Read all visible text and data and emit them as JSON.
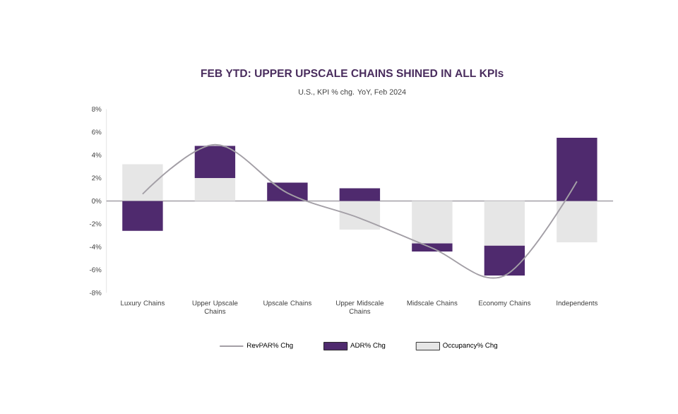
{
  "chart_data": {
    "type": "bar",
    "stacked": true,
    "title": "FEB YTD: UPPER UPSCALE CHAINS SHINED IN ALL KPIs",
    "subtitle": "U.S., KPI % chg. YoY, Feb 2024",
    "categories": [
      "Luxury Chains",
      "Upper Upscale Chains",
      "Upscale Chains",
      "Upper Midscale Chains",
      "Midscale Chains",
      "Economy Chains",
      "Independents"
    ],
    "series": [
      {
        "name": "Occupancy% Chg",
        "color": "#e6e6e6",
        "values": [
          3.2,
          2.0,
          0.0,
          -2.5,
          -3.7,
          -3.9,
          -3.6
        ]
      },
      {
        "name": "ADR% Chg",
        "color": "#4f2a6e",
        "values": [
          -2.6,
          2.8,
          1.6,
          1.1,
          -0.7,
          -2.6,
          5.5
        ]
      },
      {
        "name": "RevPAR% Chg",
        "type": "line",
        "color": "#a39fa6",
        "values": [
          0.6,
          4.9,
          0.7,
          -1.5,
          -4.1,
          -6.5,
          1.7
        ]
      }
    ],
    "ylim": [
      -8,
      8
    ],
    "yticks": [
      {
        "value": -8,
        "label": "-8%"
      },
      {
        "value": -6,
        "label": "-6%"
      },
      {
        "value": -4,
        "label": "-4%"
      },
      {
        "value": -2,
        "label": "-2%"
      },
      {
        "value": 0,
        "label": "0%"
      },
      {
        "value": 2,
        "label": "2%"
      },
      {
        "value": 4,
        "label": "4%"
      },
      {
        "value": 6,
        "label": "6%"
      },
      {
        "value": 8,
        "label": "8%"
      }
    ],
    "legend": "bottom",
    "grid": false,
    "ref_lines": [
      {
        "axis": "y",
        "value": 0,
        "color": "#a39fa6"
      }
    ]
  }
}
